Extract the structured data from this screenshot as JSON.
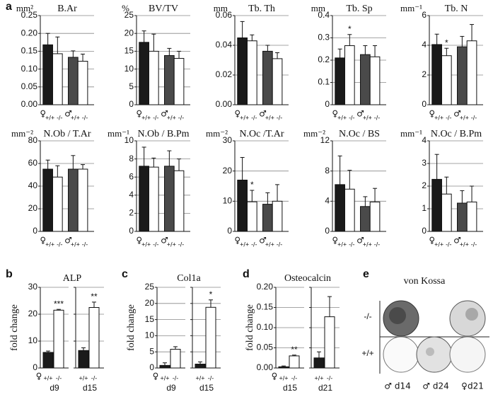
{
  "panel_labels": [
    "a",
    "b",
    "c",
    "d",
    "e"
  ],
  "chart_data": [
    {
      "type": "bar",
      "title": "B.Ar",
      "unit": "mm²",
      "groups": [
        "♀",
        "♂"
      ],
      "categories": [
        "+/+",
        "-/-",
        "+/+",
        "-/-"
      ],
      "values": [
        0.168,
        0.143,
        0.133,
        0.122
      ],
      "errors": [
        0.032,
        0.047,
        0.018,
        0.02
      ],
      "colors": [
        "#1a1a1a",
        "#ffffff",
        "#4a4a4a",
        "#ffffff"
      ],
      "significance": [
        null,
        null,
        null,
        null
      ],
      "ylim": [
        0,
        0.25
      ],
      "yticks": [
        {
          "value": 0,
          "label": "0.00"
        },
        {
          "value": 0.05,
          "label": "0.05"
        },
        {
          "value": 0.1,
          "label": "0.10"
        },
        {
          "value": 0.15,
          "label": "0.15"
        },
        {
          "value": 0.2,
          "label": "0.20"
        },
        {
          "value": 0.25,
          "label": "0.25"
        }
      ],
      "grid": true
    },
    {
      "type": "bar",
      "title": "BV/TV",
      "unit": "%",
      "groups": [
        "♀",
        "♂"
      ],
      "categories": [
        "+/+",
        "-/-",
        "+/+",
        "-/-"
      ],
      "values": [
        17.5,
        15,
        13.8,
        13
      ],
      "errors": [
        3.2,
        4.8,
        2,
        2
      ],
      "colors": [
        "#1a1a1a",
        "#ffffff",
        "#4a4a4a",
        "#ffffff"
      ],
      "significance": [
        null,
        null,
        null,
        null
      ],
      "ylim": [
        0,
        25
      ],
      "yticks": [
        0,
        5,
        10,
        15,
        20,
        25
      ],
      "grid": true
    },
    {
      "type": "bar",
      "title": "Tb. Th",
      "unit": "mm",
      "groups": [
        "♀",
        "♂"
      ],
      "categories": [
        "+/+",
        "-/-",
        "+/+",
        "-/-"
      ],
      "values": [
        0.045,
        0.043,
        0.036,
        0.031
      ],
      "errors": [
        0.011,
        0.004,
        0.004,
        0.004
      ],
      "colors": [
        "#1a1a1a",
        "#ffffff",
        "#4a4a4a",
        "#ffffff"
      ],
      "significance": [
        null,
        null,
        null,
        null
      ],
      "ylim": [
        0,
        0.06
      ],
      "yticks": [
        {
          "value": 0,
          "label": "0.00"
        },
        {
          "value": 0.02,
          "label": "0.02"
        },
        {
          "value": 0.04,
          "label": "0.04"
        },
        {
          "value": 0.06,
          "label": "0.06"
        }
      ],
      "grid": true
    },
    {
      "type": "bar",
      "title": "Tb. Sp",
      "unit": "mm",
      "groups": [
        "♀",
        "♂"
      ],
      "categories": [
        "+/+",
        "-/-",
        "+/+",
        "-/-"
      ],
      "values": [
        0.21,
        0.265,
        0.225,
        0.215
      ],
      "errors": [
        0.04,
        0.05,
        0.04,
        0.05
      ],
      "colors": [
        "#1a1a1a",
        "#ffffff",
        "#4a4a4a",
        "#ffffff"
      ],
      "significance": [
        null,
        "*",
        null,
        null
      ],
      "ylim": [
        0,
        0.4
      ],
      "yticks": [
        0,
        0.1,
        0.2,
        0.3,
        0.4
      ],
      "grid": true
    },
    {
      "type": "bar",
      "title": "Tb. N",
      "unit": "mm⁻¹",
      "groups": [
        "♀",
        "♂"
      ],
      "categories": [
        "+/+",
        "-/-",
        "+/+",
        "-/-"
      ],
      "values": [
        4.05,
        3.3,
        3.9,
        4.3
      ],
      "errors": [
        0.7,
        0.5,
        0.7,
        1.1
      ],
      "colors": [
        "#1a1a1a",
        "#ffffff",
        "#4a4a4a",
        "#ffffff"
      ],
      "significance": [
        null,
        "*",
        null,
        null
      ],
      "ylim": [
        0,
        6
      ],
      "yticks": [
        0,
        2,
        4,
        6
      ],
      "grid": true
    },
    {
      "type": "bar",
      "title": "N.Ob / T.Ar",
      "unit": "mm⁻²",
      "groups": [
        "♀",
        "♂"
      ],
      "categories": [
        "+/+",
        "-/-",
        "+/+",
        "-/-"
      ],
      "values": [
        55,
        48,
        55,
        55
      ],
      "errors": [
        8,
        10,
        12,
        4
      ],
      "colors": [
        "#1a1a1a",
        "#ffffff",
        "#4a4a4a",
        "#ffffff"
      ],
      "significance": [
        null,
        null,
        null,
        null
      ],
      "ylim": [
        0,
        80
      ],
      "yticks": [
        0,
        20,
        40,
        60,
        80
      ],
      "grid": true
    },
    {
      "type": "bar",
      "title": "N.Ob / B.Pm",
      "unit": "mm⁻¹",
      "groups": [
        "♀",
        "♂"
      ],
      "categories": [
        "+/+",
        "-/-",
        "+/+",
        "-/-"
      ],
      "values": [
        7.2,
        7.1,
        7.2,
        6.7
      ],
      "errors": [
        2.1,
        1,
        1.7,
        1.3
      ],
      "colors": [
        "#1a1a1a",
        "#ffffff",
        "#4a4a4a",
        "#ffffff"
      ],
      "significance": [
        null,
        null,
        null,
        null
      ],
      "ylim": [
        0,
        10
      ],
      "yticks": [
        0,
        2,
        4,
        6,
        8,
        10
      ],
      "grid": true
    },
    {
      "type": "bar",
      "title": "N.Oc /T.Ar",
      "unit": "mm⁻²",
      "groups": [
        "♀",
        "♂"
      ],
      "categories": [
        "+/+",
        "-/-",
        "+/+",
        "-/-"
      ],
      "values": [
        17,
        9.8,
        9,
        10
      ],
      "errors": [
        7.5,
        3.8,
        3.8,
        5.5
      ],
      "colors": [
        "#1a1a1a",
        "#ffffff",
        "#4a4a4a",
        "#ffffff"
      ],
      "significance": [
        null,
        "*",
        null,
        null
      ],
      "ylim": [
        0,
        30
      ],
      "yticks": [
        0,
        10,
        20,
        30
      ],
      "grid": true
    },
    {
      "type": "bar",
      "title": "N.Oc / BS",
      "unit": "mm⁻²",
      "groups": [
        "♀",
        "♂"
      ],
      "categories": [
        "+/+",
        "-/-",
        "+/+",
        "-/-"
      ],
      "values": [
        6.2,
        5.6,
        3.3,
        3.9
      ],
      "errors": [
        3.8,
        2.5,
        1.3,
        1.8
      ],
      "colors": [
        "#1a1a1a",
        "#ffffff",
        "#4a4a4a",
        "#ffffff"
      ],
      "significance": [
        null,
        null,
        null,
        null
      ],
      "ylim": [
        0,
        12
      ],
      "yticks": [
        0,
        4,
        8,
        12
      ],
      "grid": true
    },
    {
      "type": "bar",
      "title": "N.Oc / B.Pm",
      "unit": "mm⁻¹",
      "groups": [
        "♀",
        "♂"
      ],
      "categories": [
        "+/+",
        "-/-",
        "+/+",
        "-/-"
      ],
      "values": [
        2.3,
        1.65,
        1.25,
        1.3
      ],
      "errors": [
        1.1,
        0.75,
        0.55,
        0.7
      ],
      "colors": [
        "#1a1a1a",
        "#ffffff",
        "#4a4a4a",
        "#ffffff"
      ],
      "significance": [
        null,
        null,
        null,
        null
      ],
      "ylim": [
        0,
        4
      ],
      "yticks": [
        0,
        1,
        2,
        3,
        4
      ],
      "grid": true
    },
    {
      "type": "bar",
      "title": "ALP",
      "ylabel": "fold change",
      "sex": "♀",
      "groups": [
        "d9",
        "d15"
      ],
      "categories": [
        "+/+",
        "-/-",
        "+/+",
        "-/-"
      ],
      "values": [
        5.8,
        21.5,
        6.5,
        22.5
      ],
      "errors": [
        0.5,
        0.3,
        1,
        2
      ],
      "colors": [
        "#1a1a1a",
        "#ffffff",
        "#1a1a1a",
        "#ffffff"
      ],
      "significance": [
        null,
        "***",
        null,
        "**"
      ],
      "ylim": [
        0,
        30
      ],
      "yticks": [
        0,
        10,
        20,
        30
      ],
      "grid": true
    },
    {
      "type": "bar",
      "title": "Col1a",
      "ylabel": "fold change",
      "sex": "♀",
      "groups": [
        "d9",
        "d15"
      ],
      "categories": [
        "+/+",
        "-/-",
        "+/+",
        "-/-"
      ],
      "values": [
        0.8,
        5.8,
        1.2,
        18.8
      ],
      "errors": [
        0.8,
        0.8,
        0.7,
        2.3
      ],
      "colors": [
        "#1a1a1a",
        "#ffffff",
        "#1a1a1a",
        "#ffffff"
      ],
      "significance": [
        null,
        null,
        null,
        "*"
      ],
      "ylim": [
        0,
        25
      ],
      "yticks": [
        0,
        5,
        10,
        15,
        20,
        25
      ],
      "grid": true
    },
    {
      "type": "bar",
      "title": "Osteocalcin",
      "ylabel": "fold change",
      "sex": "♀",
      "groups": [
        "d15",
        "d21"
      ],
      "categories": [
        "+/+",
        "-/-",
        "+/+",
        "-/-"
      ],
      "values": [
        0.003,
        0.03,
        0.025,
        0.127
      ],
      "errors": [
        0.002,
        0.002,
        0.015,
        0.05
      ],
      "colors": [
        "#1a1a1a",
        "#ffffff",
        "#1a1a1a",
        "#ffffff"
      ],
      "significance": [
        null,
        "**",
        null,
        null
      ],
      "ylim": [
        0,
        0.2
      ],
      "yticks": [
        {
          "value": 0,
          "label": "0.00"
        },
        {
          "value": 0.05,
          "label": "0.05"
        },
        {
          "value": 0.1,
          "label": "0.10"
        },
        {
          "value": 0.15,
          "label": "0.15"
        },
        {
          "value": 0.2,
          "label": "0.20"
        }
      ],
      "grid": true
    }
  ],
  "von_kossa": {
    "title": "von Kossa",
    "rows": [
      "-/-",
      "+/+"
    ],
    "columns": [
      "♂ d14",
      "♂ d24",
      "♀d21"
    ]
  }
}
